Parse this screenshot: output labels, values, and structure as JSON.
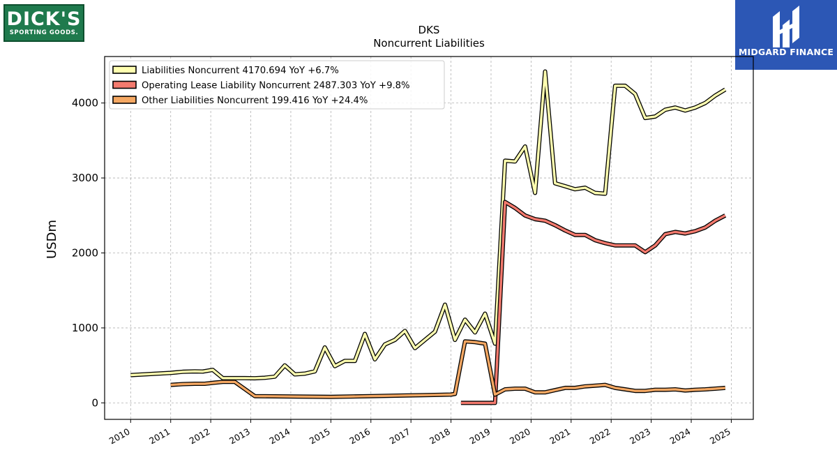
{
  "logos": {
    "left_line1": "DICK'S",
    "left_line2": "SPORTING GOODS.",
    "right_name": "MIDGARD FINANCE"
  },
  "colors": {
    "liabilities": "#ffffb0",
    "lease": "#f47a6e",
    "other": "#f5a863",
    "outline": "#000000",
    "grid": "#b0b0b0"
  },
  "chart_data": {
    "type": "line",
    "title": "DKS",
    "subtitle": "Noncurrent  Liabilities",
    "ylabel": "USDm",
    "xlabel": "",
    "ylim": [
      -220,
      4620
    ],
    "xlim": [
      2009.35,
      2025.55
    ],
    "yticks": [
      0,
      1000,
      2000,
      3000,
      4000
    ],
    "xticks": [
      "2010",
      "2011",
      "2012",
      "2013",
      "2014",
      "2015",
      "2016",
      "2017",
      "2018",
      "2019",
      "2020",
      "2021",
      "2022",
      "2023",
      "2024",
      "2025"
    ],
    "grid": true,
    "legend_position": "top-left",
    "series": [
      {
        "name": "Liabilities Noncurrent",
        "legend": "Liabilities Noncurrent  4170.694 YoY +6.7%",
        "color_key": "liabilities",
        "points": [
          [
            2010.0,
            370
          ],
          [
            2011.0,
            400
          ],
          [
            2011.3,
            415
          ],
          [
            2011.6,
            420
          ],
          [
            2011.8,
            418
          ],
          [
            2012.05,
            440
          ],
          [
            2012.3,
            330
          ],
          [
            2012.6,
            330
          ],
          [
            2012.85,
            330
          ],
          [
            2013.1,
            328
          ],
          [
            2013.35,
            335
          ],
          [
            2013.6,
            350
          ],
          [
            2013.85,
            500
          ],
          [
            2014.1,
            380
          ],
          [
            2014.35,
            390
          ],
          [
            2014.6,
            420
          ],
          [
            2014.85,
            740
          ],
          [
            2015.1,
            490
          ],
          [
            2015.35,
            560
          ],
          [
            2015.6,
            560
          ],
          [
            2015.85,
            920
          ],
          [
            2016.1,
            580
          ],
          [
            2016.35,
            780
          ],
          [
            2016.6,
            840
          ],
          [
            2016.85,
            960
          ],
          [
            2017.1,
            730
          ],
          [
            2017.35,
            840
          ],
          [
            2017.6,
            950
          ],
          [
            2017.85,
            1310
          ],
          [
            2018.1,
            840
          ],
          [
            2018.35,
            1110
          ],
          [
            2018.6,
            940
          ],
          [
            2018.85,
            1190
          ],
          [
            2019.1,
            790
          ],
          [
            2019.35,
            3230
          ],
          [
            2019.6,
            3220
          ],
          [
            2019.85,
            3420
          ],
          [
            2020.1,
            2800
          ],
          [
            2020.35,
            4420
          ],
          [
            2020.6,
            2930
          ],
          [
            2020.85,
            2890
          ],
          [
            2021.1,
            2850
          ],
          [
            2021.35,
            2870
          ],
          [
            2021.6,
            2800
          ],
          [
            2021.85,
            2790
          ],
          [
            2022.1,
            4230
          ],
          [
            2022.35,
            4230
          ],
          [
            2022.6,
            4120
          ],
          [
            2022.85,
            3800
          ],
          [
            2023.1,
            3820
          ],
          [
            2023.35,
            3910
          ],
          [
            2023.6,
            3940
          ],
          [
            2023.85,
            3900
          ],
          [
            2024.1,
            3940
          ],
          [
            2024.35,
            4000
          ],
          [
            2024.6,
            4100
          ],
          [
            2024.85,
            4180
          ]
        ]
      },
      {
        "name": "Operating Lease Liability Noncurrent",
        "legend": "Operating Lease Liability Noncurrent  2487.303 YoY +9.8%",
        "color_key": "lease",
        "points": [
          [
            2018.25,
            0
          ],
          [
            2018.6,
            0
          ],
          [
            2018.85,
            0
          ],
          [
            2019.1,
            0
          ],
          [
            2019.35,
            2680
          ],
          [
            2019.6,
            2600
          ],
          [
            2019.85,
            2500
          ],
          [
            2020.1,
            2450
          ],
          [
            2020.35,
            2430
          ],
          [
            2020.6,
            2370
          ],
          [
            2020.85,
            2300
          ],
          [
            2021.1,
            2240
          ],
          [
            2021.35,
            2240
          ],
          [
            2021.6,
            2170
          ],
          [
            2021.85,
            2130
          ],
          [
            2022.1,
            2100
          ],
          [
            2022.35,
            2100
          ],
          [
            2022.6,
            2100
          ],
          [
            2022.85,
            2010
          ],
          [
            2023.1,
            2100
          ],
          [
            2023.35,
            2250
          ],
          [
            2023.6,
            2280
          ],
          [
            2023.85,
            2260
          ],
          [
            2024.1,
            2290
          ],
          [
            2024.35,
            2340
          ],
          [
            2024.6,
            2430
          ],
          [
            2024.85,
            2500
          ]
        ]
      },
      {
        "name": "Other Liabilities Noncurrent",
        "legend": "Other Liabilities Noncurrent  199.416 YoY +24.4%",
        "color_key": "other",
        "points": [
          [
            2011.0,
            240
          ],
          [
            2011.3,
            250
          ],
          [
            2011.6,
            255
          ],
          [
            2011.85,
            255
          ],
          [
            2012.1,
            270
          ],
          [
            2012.3,
            280
          ],
          [
            2012.6,
            280
          ],
          [
            2013.1,
            90
          ],
          [
            2015.0,
            80
          ],
          [
            2016.0,
            90
          ],
          [
            2017.0,
            100
          ],
          [
            2018.0,
            110
          ],
          [
            2018.1,
            120
          ],
          [
            2018.35,
            820
          ],
          [
            2018.6,
            810
          ],
          [
            2018.85,
            790
          ],
          [
            2019.1,
            110
          ],
          [
            2019.35,
            180
          ],
          [
            2019.6,
            190
          ],
          [
            2019.85,
            190
          ],
          [
            2020.1,
            140
          ],
          [
            2020.35,
            140
          ],
          [
            2020.6,
            170
          ],
          [
            2020.85,
            200
          ],
          [
            2021.1,
            200
          ],
          [
            2021.35,
            220
          ],
          [
            2021.6,
            230
          ],
          [
            2021.85,
            240
          ],
          [
            2022.1,
            200
          ],
          [
            2022.35,
            180
          ],
          [
            2022.6,
            160
          ],
          [
            2022.85,
            160
          ],
          [
            2023.1,
            175
          ],
          [
            2023.35,
            175
          ],
          [
            2023.6,
            180
          ],
          [
            2023.85,
            165
          ],
          [
            2024.1,
            175
          ],
          [
            2024.35,
            180
          ],
          [
            2024.6,
            190
          ],
          [
            2024.85,
            200
          ]
        ]
      }
    ]
  }
}
